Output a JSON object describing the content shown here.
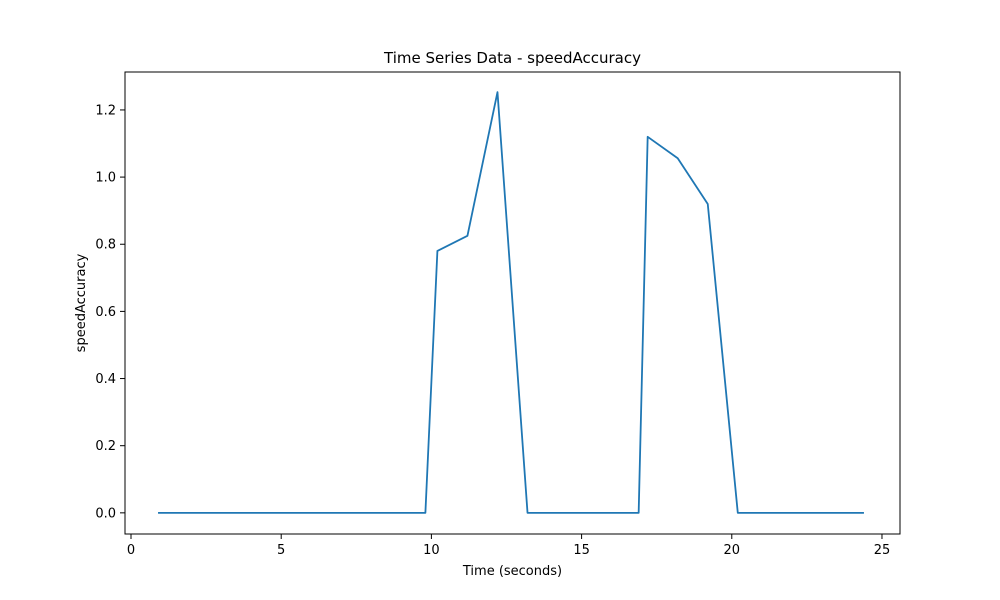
{
  "chart_data": {
    "type": "line",
    "title": "Time Series Data - speedAccuracy",
    "xlabel": "Time (seconds)",
    "ylabel": "speedAccuracy",
    "xlim": [
      -0.2,
      25.6
    ],
    "ylim": [
      -0.063,
      1.313
    ],
    "xticks": [
      0,
      5,
      10,
      15,
      20,
      25
    ],
    "yticks": [
      0.0,
      0.2,
      0.4,
      0.6,
      0.8,
      1.0,
      1.2
    ],
    "ytick_labels": [
      "0.0",
      "0.2",
      "0.4",
      "0.6",
      "0.8",
      "1.0",
      "1.2"
    ],
    "grid": false,
    "colors": {
      "line": "#1f77b4"
    },
    "series": [
      {
        "x": [
          0.9,
          9.8,
          10.2,
          11.2,
          12.2,
          13.2,
          16.9,
          17.2,
          18.2,
          19.2,
          20.2,
          24.4
        ],
        "values": [
          0.0,
          0.0,
          0.78,
          0.825,
          1.253,
          0.0,
          0.0,
          1.12,
          1.056,
          0.92,
          0.0,
          0.0
        ]
      }
    ]
  }
}
